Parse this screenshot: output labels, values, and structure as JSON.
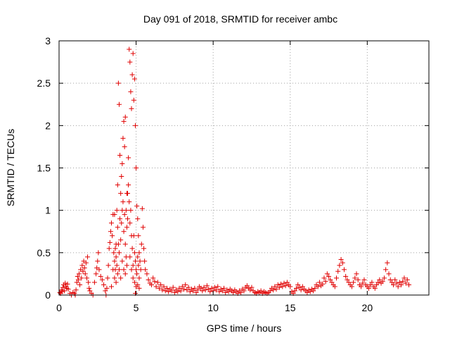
{
  "chart_data": {
    "type": "scatter",
    "title": "Day 091 of 2018, SRMTID for receiver ambc",
    "xlabel": "GPS time / hours",
    "ylabel": "SRMTID / TECUs",
    "xlim": [
      0,
      24
    ],
    "ylim": [
      0,
      3
    ],
    "x_ticks": [
      0,
      5,
      10,
      15,
      20
    ],
    "x_tick_labels": [
      "0",
      "5",
      "10",
      "15",
      "20"
    ],
    "y_ticks": [
      0,
      0.5,
      1,
      1.5,
      2,
      2.5,
      3
    ],
    "y_tick_labels": [
      "0",
      "0.5",
      "1",
      "1.5",
      "2",
      "2.5",
      "3"
    ],
    "grid": true,
    "marker": "+",
    "series": [
      {
        "name": "SRMTID",
        "color": "#e00000",
        "points": [
          [
            0.05,
            0.03
          ],
          [
            0.1,
            0.02
          ],
          [
            0.15,
            0.06
          ],
          [
            0.2,
            0.04
          ],
          [
            0.25,
            0.09
          ],
          [
            0.3,
            0.12
          ],
          [
            0.35,
            0.05
          ],
          [
            0.4,
            0.14
          ],
          [
            0.45,
            0.1
          ],
          [
            0.5,
            0.08
          ],
          [
            0.55,
            0.13
          ],
          [
            0.6,
            0.07
          ],
          [
            0.7,
            0.02
          ],
          [
            0.8,
            0.0
          ],
          [
            0.9,
            0.03
          ],
          [
            1.0,
            0.02
          ],
          [
            1.05,
            0.0
          ],
          [
            1.1,
            0.06
          ],
          [
            1.15,
            0.15
          ],
          [
            1.2,
            0.22
          ],
          [
            1.25,
            0.18
          ],
          [
            1.3,
            0.25
          ],
          [
            1.35,
            0.12
          ],
          [
            1.4,
            0.3
          ],
          [
            1.45,
            0.2
          ],
          [
            1.5,
            0.35
          ],
          [
            1.55,
            0.28
          ],
          [
            1.6,
            0.4
          ],
          [
            1.65,
            0.32
          ],
          [
            1.7,
            0.25
          ],
          [
            1.75,
            0.38
          ],
          [
            1.8,
            0.2
          ],
          [
            1.85,
            0.45
          ],
          [
            1.9,
            0.15
          ],
          [
            1.95,
            0.08
          ],
          [
            2.0,
            0.05
          ],
          [
            2.1,
            0.02
          ],
          [
            2.2,
            0.0
          ],
          [
            2.3,
            0.15
          ],
          [
            2.4,
            0.25
          ],
          [
            2.45,
            0.32
          ],
          [
            2.5,
            0.4
          ],
          [
            2.55,
            0.5
          ],
          [
            2.6,
            0.3
          ],
          [
            2.7,
            0.22
          ],
          [
            2.8,
            0.18
          ],
          [
            2.9,
            0.12
          ],
          [
            3.0,
            0.05
          ],
          [
            3.05,
            0.0
          ],
          [
            3.1,
            0.08
          ],
          [
            3.15,
            0.2
          ],
          [
            3.2,
            0.35
          ],
          [
            3.25,
            0.55
          ],
          [
            3.3,
            0.62
          ],
          [
            3.35,
            0.75
          ],
          [
            3.4,
            0.85
          ],
          [
            3.45,
            0.7
          ],
          [
            3.5,
            0.95
          ],
          [
            3.55,
            0.5
          ],
          [
            3.6,
            0.4
          ],
          [
            3.65,
            0.3
          ],
          [
            3.7,
            0.6
          ],
          [
            3.75,
            1.0
          ],
          [
            3.8,
            1.3
          ],
          [
            3.85,
            2.5
          ],
          [
            3.9,
            2.25
          ],
          [
            3.95,
            1.65
          ],
          [
            4.0,
            1.2
          ],
          [
            4.05,
            1.4
          ],
          [
            4.1,
            1.55
          ],
          [
            4.15,
            1.85
          ],
          [
            4.2,
            2.05
          ],
          [
            4.25,
            1.75
          ],
          [
            4.3,
            2.1
          ],
          [
            4.35,
            1.0
          ],
          [
            4.4,
            0.8
          ],
          [
            4.45,
            1.2
          ],
          [
            4.5,
            1.62
          ],
          [
            4.55,
            2.9
          ],
          [
            4.6,
            2.75
          ],
          [
            4.65,
            2.4
          ],
          [
            4.7,
            2.2
          ],
          [
            4.75,
            2.6
          ],
          [
            4.8,
            2.85
          ],
          [
            4.85,
            2.3
          ],
          [
            4.9,
            2.55
          ],
          [
            4.95,
            2.0
          ],
          [
            5.0,
            1.5
          ],
          [
            5.05,
            1.05
          ],
          [
            5.1,
            0.9
          ],
          [
            5.15,
            0.7
          ],
          [
            5.2,
            0.5
          ],
          [
            5.25,
            0.4
          ],
          [
            5.3,
            0.3
          ],
          [
            5.35,
            0.6
          ],
          [
            5.4,
            1.02
          ],
          [
            5.45,
            0.8
          ],
          [
            5.5,
            0.55
          ],
          [
            5.55,
            0.4
          ],
          [
            5.6,
            0.3
          ],
          [
            3.6,
            0.95
          ],
          [
            3.65,
            0.55
          ],
          [
            3.7,
            0.45
          ],
          [
            3.75,
            0.35
          ],
          [
            3.8,
            0.8
          ],
          [
            3.85,
            0.6
          ],
          [
            3.9,
            0.5
          ],
          [
            3.95,
            0.9
          ],
          [
            4.0,
            0.65
          ],
          [
            4.05,
            0.85
          ],
          [
            4.1,
            1.0
          ],
          [
            4.15,
            1.1
          ],
          [
            4.2,
            0.75
          ],
          [
            4.25,
            0.95
          ],
          [
            4.3,
            0.6
          ],
          [
            4.35,
            0.45
          ],
          [
            4.4,
            1.2
          ],
          [
            4.45,
            0.9
          ],
          [
            4.5,
            1.3
          ],
          [
            4.55,
            1.1
          ],
          [
            4.6,
            0.85
          ],
          [
            4.65,
            1.0
          ],
          [
            4.7,
            0.7
          ],
          [
            4.75,
            0.55
          ],
          [
            4.8,
            0.35
          ],
          [
            4.85,
            0.7
          ],
          [
            4.9,
            0.5
          ],
          [
            4.95,
            0.4
          ],
          [
            5.0,
            0.3
          ],
          [
            5.05,
            0.25
          ],
          [
            5.1,
            0.45
          ],
          [
            5.15,
            0.35
          ],
          [
            5.2,
            0.2
          ],
          [
            3.5,
            0.3
          ],
          [
            3.6,
            0.2
          ],
          [
            3.7,
            0.15
          ],
          [
            3.8,
            0.25
          ],
          [
            3.9,
            0.3
          ],
          [
            4.0,
            0.2
          ],
          [
            4.1,
            0.4
          ],
          [
            4.2,
            0.3
          ],
          [
            4.3,
            0.25
          ],
          [
            4.4,
            0.35
          ],
          [
            4.6,
            0.45
          ],
          [
            4.7,
            0.3
          ],
          [
            4.8,
            0.2
          ],
          [
            4.9,
            0.15
          ],
          [
            5.0,
            0.1
          ],
          [
            5.1,
            0.12
          ],
          [
            5.2,
            0.08
          ],
          [
            4.95,
            0.02
          ],
          [
            3.4,
            0.1
          ],
          [
            5.7,
            0.25
          ],
          [
            5.8,
            0.18
          ],
          [
            5.9,
            0.14
          ],
          [
            6.0,
            0.12
          ],
          [
            6.1,
            0.2
          ],
          [
            6.2,
            0.16
          ],
          [
            6.3,
            0.1
          ],
          [
            6.4,
            0.15
          ],
          [
            6.5,
            0.08
          ],
          [
            6.6,
            0.12
          ],
          [
            6.7,
            0.06
          ],
          [
            6.8,
            0.1
          ],
          [
            6.9,
            0.05
          ],
          [
            7.0,
            0.08
          ],
          [
            7.1,
            0.04
          ],
          [
            7.2,
            0.07
          ],
          [
            7.3,
            0.05
          ],
          [
            7.4,
            0.09
          ],
          [
            7.5,
            0.03
          ],
          [
            7.6,
            0.06
          ],
          [
            7.7,
            0.04
          ],
          [
            7.8,
            0.08
          ],
          [
            7.9,
            0.05
          ],
          [
            8.0,
            0.1
          ],
          [
            8.1,
            0.07
          ],
          [
            8.2,
            0.12
          ],
          [
            8.3,
            0.06
          ],
          [
            8.4,
            0.09
          ],
          [
            8.5,
            0.04
          ],
          [
            8.6,
            0.07
          ],
          [
            8.7,
            0.05
          ],
          [
            8.8,
            0.08
          ],
          [
            8.9,
            0.03
          ],
          [
            9.0,
            0.06
          ],
          [
            9.1,
            0.1
          ],
          [
            9.2,
            0.08
          ],
          [
            9.3,
            0.05
          ],
          [
            9.4,
            0.09
          ],
          [
            9.5,
            0.06
          ],
          [
            9.6,
            0.11
          ],
          [
            9.7,
            0.07
          ],
          [
            9.8,
            0.04
          ],
          [
            9.9,
            0.08
          ],
          [
            10.0,
            0.05
          ],
          [
            10.1,
            0.09
          ],
          [
            10.2,
            0.06
          ],
          [
            10.3,
            0.1
          ],
          [
            10.4,
            0.04
          ],
          [
            10.5,
            0.07
          ],
          [
            10.6,
            0.05
          ],
          [
            10.7,
            0.08
          ],
          [
            10.8,
            0.03
          ],
          [
            10.9,
            0.06
          ],
          [
            11.0,
            0.04
          ],
          [
            11.1,
            0.07
          ],
          [
            11.2,
            0.05
          ],
          [
            11.3,
            0.03
          ],
          [
            11.4,
            0.06
          ],
          [
            11.5,
            0.04
          ],
          [
            11.6,
            0.02
          ],
          [
            11.7,
            0.05
          ],
          [
            11.8,
            0.03
          ],
          [
            11.9,
            0.07
          ],
          [
            12.0,
            0.05
          ],
          [
            12.1,
            0.09
          ],
          [
            12.2,
            0.11
          ],
          [
            12.3,
            0.08
          ],
          [
            12.4,
            0.06
          ],
          [
            12.5,
            0.09
          ],
          [
            12.6,
            0.05
          ],
          [
            12.7,
            0.03
          ],
          [
            12.8,
            0.02
          ],
          [
            12.9,
            0.04
          ],
          [
            13.0,
            0.03
          ],
          [
            13.1,
            0.05
          ],
          [
            13.2,
            0.02
          ],
          [
            13.3,
            0.04
          ],
          [
            13.4,
            0.03
          ],
          [
            13.5,
            0.02
          ],
          [
            13.6,
            0.03
          ],
          [
            13.7,
            0.05
          ],
          [
            13.8,
            0.08
          ],
          [
            13.9,
            0.06
          ],
          [
            14.0,
            0.1
          ],
          [
            14.1,
            0.07
          ],
          [
            14.2,
            0.12
          ],
          [
            14.3,
            0.09
          ],
          [
            14.4,
            0.13
          ],
          [
            14.5,
            0.1
          ],
          [
            14.6,
            0.14
          ],
          [
            14.7,
            0.11
          ],
          [
            14.8,
            0.15
          ],
          [
            14.9,
            0.12
          ],
          [
            15.0,
            0.1
          ],
          [
            15.1,
            0.04
          ],
          [
            15.2,
            0.02
          ],
          [
            15.3,
            0.05
          ],
          [
            15.4,
            0.08
          ],
          [
            15.5,
            0.12
          ],
          [
            15.6,
            0.09
          ],
          [
            15.7,
            0.06
          ],
          [
            15.8,
            0.1
          ],
          [
            15.9,
            0.07
          ],
          [
            16.0,
            0.05
          ],
          [
            16.1,
            0.03
          ],
          [
            16.2,
            0.06
          ],
          [
            16.3,
            0.04
          ],
          [
            16.4,
            0.07
          ],
          [
            16.5,
            0.05
          ],
          [
            16.6,
            0.08
          ],
          [
            16.7,
            0.12
          ],
          [
            16.8,
            0.1
          ],
          [
            16.9,
            0.15
          ],
          [
            17.0,
            0.11
          ],
          [
            17.1,
            0.13
          ],
          [
            17.2,
            0.2
          ],
          [
            17.3,
            0.16
          ],
          [
            17.4,
            0.25
          ],
          [
            17.5,
            0.22
          ],
          [
            17.6,
            0.18
          ],
          [
            17.7,
            0.15
          ],
          [
            17.8,
            0.12
          ],
          [
            17.9,
            0.1
          ],
          [
            18.0,
            0.2
          ],
          [
            18.1,
            0.28
          ],
          [
            18.2,
            0.35
          ],
          [
            18.3,
            0.42
          ],
          [
            18.4,
            0.38
          ],
          [
            18.5,
            0.3
          ],
          [
            18.6,
            0.22
          ],
          [
            18.7,
            0.18
          ],
          [
            18.8,
            0.15
          ],
          [
            18.9,
            0.12
          ],
          [
            19.0,
            0.1
          ],
          [
            19.1,
            0.15
          ],
          [
            19.2,
            0.2
          ],
          [
            19.3,
            0.25
          ],
          [
            19.4,
            0.18
          ],
          [
            19.5,
            0.12
          ],
          [
            19.6,
            0.1
          ],
          [
            19.7,
            0.14
          ],
          [
            19.8,
            0.18
          ],
          [
            19.9,
            0.12
          ],
          [
            20.0,
            0.1
          ],
          [
            20.1,
            0.08
          ],
          [
            20.2,
            0.12
          ],
          [
            20.3,
            0.15
          ],
          [
            20.4,
            0.1
          ],
          [
            20.5,
            0.08
          ],
          [
            20.6,
            0.12
          ],
          [
            20.7,
            0.15
          ],
          [
            20.8,
            0.18
          ],
          [
            20.9,
            0.14
          ],
          [
            21.0,
            0.16
          ],
          [
            21.1,
            0.2
          ],
          [
            21.2,
            0.3
          ],
          [
            21.3,
            0.38
          ],
          [
            21.4,
            0.25
          ],
          [
            21.5,
            0.18
          ],
          [
            21.6,
            0.15
          ],
          [
            21.7,
            0.12
          ],
          [
            21.8,
            0.18
          ],
          [
            21.9,
            0.14
          ],
          [
            22.0,
            0.1
          ],
          [
            22.1,
            0.15
          ],
          [
            22.2,
            0.12
          ],
          [
            22.3,
            0.16
          ],
          [
            22.4,
            0.2
          ],
          [
            22.5,
            0.14
          ],
          [
            22.6,
            0.18
          ],
          [
            22.7,
            0.12
          ]
        ]
      }
    ]
  }
}
